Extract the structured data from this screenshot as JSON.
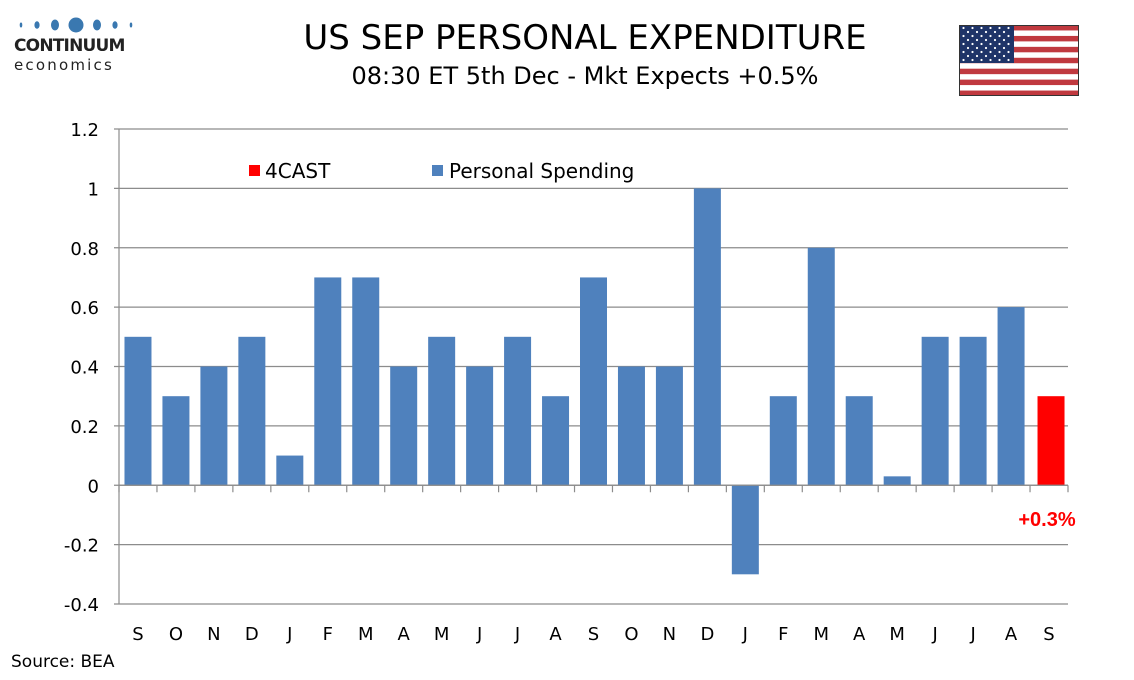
{
  "logo": {
    "brand": "CONTINUUM",
    "tagline": "economics",
    "dot_color": "#3a78b0"
  },
  "header": {
    "title": "US SEP PERSONAL EXPENDITURE",
    "subtitle": "08:30 ET 5th Dec - Mkt Expects +0.5%",
    "flag_icon": "us-flag-icon"
  },
  "footer": {
    "source": "Source: BEA"
  },
  "chart_data": {
    "type": "bar",
    "title": "US SEP PERSONAL EXPENDITURE",
    "subtitle": "08:30 ET 5th Dec - Mkt Expects +0.5%",
    "xlabel": "",
    "ylabel": "",
    "ylim": [
      -0.4,
      1.2
    ],
    "yticks": [
      -0.4,
      -0.2,
      0,
      0.2,
      0.4,
      0.6,
      0.8,
      1,
      1.2
    ],
    "ytick_labels": [
      "-0.4",
      "-0.2",
      "0",
      "0.2",
      "0.4",
      "0.6",
      "0.8",
      "1",
      "1.2"
    ],
    "grid": true,
    "legend_position": "top-left",
    "categories": [
      "S",
      "O",
      "N",
      "D",
      "J",
      "F",
      "M",
      "A",
      "M",
      "J",
      "J",
      "A",
      "S",
      "O",
      "N",
      "D",
      "J",
      "F",
      "M",
      "A",
      "M",
      "J",
      "J",
      "A",
      "S"
    ],
    "series": [
      {
        "name": "4CAST",
        "color": "#ff0000",
        "values": [
          null,
          null,
          null,
          null,
          null,
          null,
          null,
          null,
          null,
          null,
          null,
          null,
          null,
          null,
          null,
          null,
          null,
          null,
          null,
          null,
          null,
          null,
          null,
          null,
          0.3
        ]
      },
      {
        "name": "Personal Spending",
        "color": "#4f81bd",
        "values": [
          0.5,
          0.3,
          0.4,
          0.5,
          0.1,
          0.7,
          0.7,
          0.4,
          0.5,
          0.4,
          0.5,
          0.3,
          0.7,
          0.4,
          0.4,
          1.0,
          -0.3,
          0.3,
          0.8,
          0.3,
          0.03,
          0.5,
          0.5,
          0.6,
          null
        ]
      }
    ],
    "annotations": [
      {
        "text": "+0.3%",
        "category_index": 24,
        "color": "#ff0000"
      }
    ]
  }
}
